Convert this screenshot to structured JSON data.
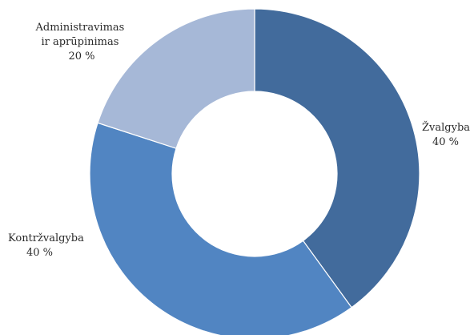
{
  "chart_data": {
    "type": "pie",
    "variant": "donut",
    "title": "",
    "categories": [
      "Žvalgyba",
      "Kontržvalgyba",
      "Administravimas ir aprūpinimas"
    ],
    "values": [
      40,
      40,
      20
    ],
    "value_labels": [
      "40 %",
      "40 %",
      "20 %"
    ],
    "label_lines": [
      [
        "Žvalgyba"
      ],
      [
        "Kontržvalgyba"
      ],
      [
        "Administravimas",
        "ir aprūpinimas"
      ]
    ],
    "colors": [
      "#426b9c",
      "#5185c2",
      "#a6b8d7"
    ],
    "start": "12 o'clock",
    "direction": "clockwise",
    "legend": "none",
    "grid": false
  }
}
